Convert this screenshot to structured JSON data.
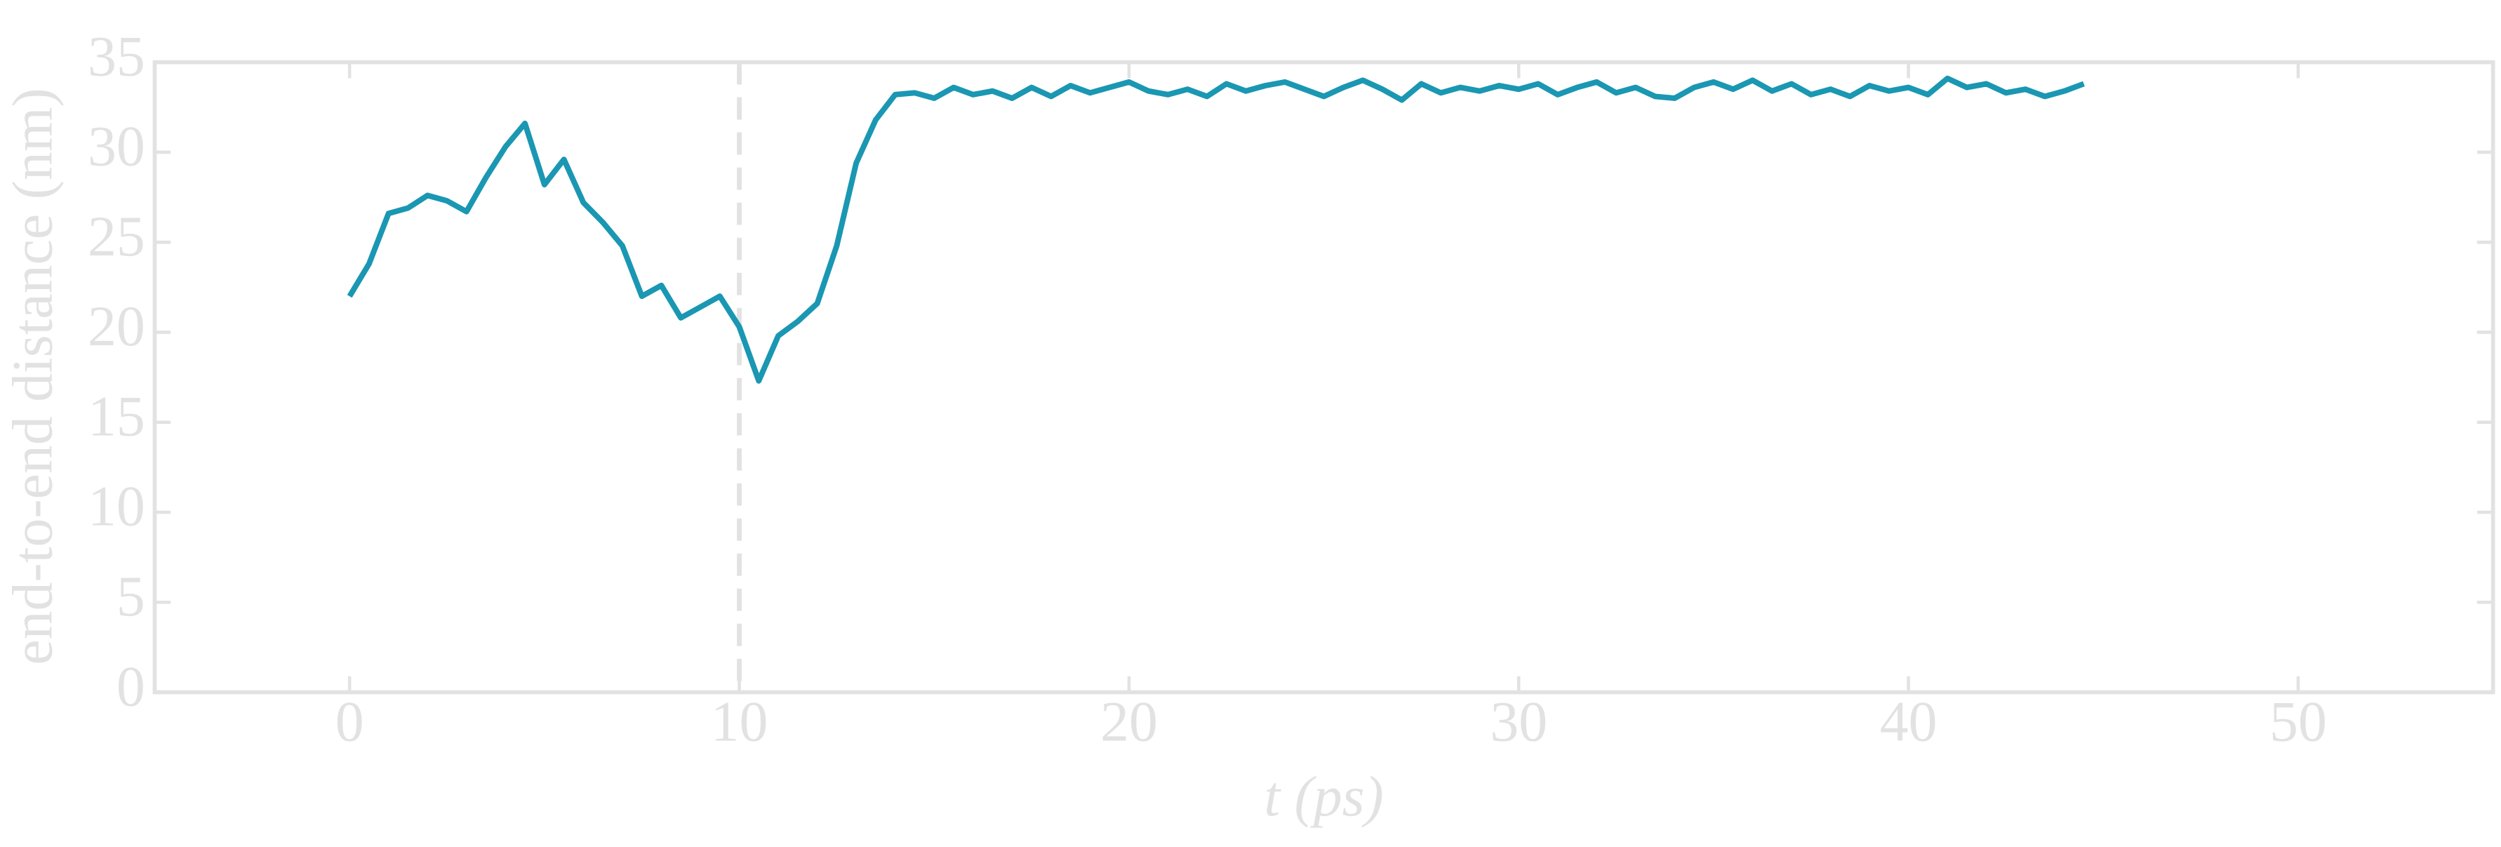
{
  "chart_data": {
    "type": "line",
    "xlabel": "t (ps)",
    "ylabel": "end-to-end distance (nm)",
    "x": [
      0,
      0.5,
      1,
      1.5,
      2,
      2.5,
      3,
      3.5,
      4,
      4.5,
      5,
      5.5,
      6,
      6.5,
      7,
      7.5,
      8,
      8.5,
      9,
      9.5,
      10,
      10.5,
      11,
      11.5,
      12,
      12.5,
      13,
      13.5,
      14,
      14.5,
      15,
      15.5,
      16,
      16.5,
      17,
      17.5,
      18,
      18.5,
      19,
      19.5,
      20,
      20.5,
      21,
      21.5,
      22,
      22.5,
      23,
      23.5,
      24,
      24.5,
      25,
      25.5,
      26,
      26.5,
      27,
      27.5,
      28,
      28.5,
      29,
      29.5,
      30,
      30.5,
      31,
      31.5,
      32,
      32.5,
      33,
      33.5,
      34,
      34.5,
      35,
      35.5,
      36,
      36.5,
      37,
      37.5,
      38,
      38.5,
      39,
      39.5,
      40,
      40.5,
      41,
      41.5,
      42,
      42.5,
      43,
      43.5,
      44,
      44.5
    ],
    "series": [
      {
        "color": "#1a97b2",
        "values": [
          22.0,
          23.8,
          26.6,
          26.9,
          27.6,
          27.3,
          26.7,
          28.6,
          30.3,
          31.6,
          28.2,
          29.6,
          27.2,
          26.1,
          24.8,
          22.0,
          22.6,
          20.8,
          21.4,
          22.0,
          20.3,
          17.3,
          19.8,
          20.6,
          21.6,
          24.8,
          29.4,
          31.8,
          33.2,
          33.3,
          33.0,
          33.6,
          33.2,
          33.4,
          33.0,
          33.6,
          33.1,
          33.7,
          33.3,
          33.6,
          33.9,
          33.4,
          33.2,
          33.5,
          33.1,
          33.8,
          33.4,
          33.7,
          33.9,
          33.5,
          33.1,
          33.6,
          34.0,
          33.5,
          32.9,
          33.8,
          33.3,
          33.6,
          33.4,
          33.7,
          33.5,
          33.8,
          33.2,
          33.6,
          33.9,
          33.3,
          33.6,
          33.1,
          33.0,
          33.6,
          33.9,
          33.5,
          34.0,
          33.4,
          33.8,
          33.2,
          33.5,
          33.1,
          33.7,
          33.4,
          33.6,
          33.2,
          34.1,
          33.6,
          33.8,
          33.3,
          33.5,
          33.1,
          33.4,
          33.8
        ]
      }
    ],
    "vline": 10,
    "xlim": [
      -5,
      55
    ],
    "xticks": [
      0,
      10,
      20,
      30,
      40,
      50
    ],
    "ylim": [
      0,
      35
    ],
    "yticks": [
      0,
      5,
      10,
      15,
      20,
      25,
      30,
      35
    ],
    "axis_color": "#e2e2e2"
  }
}
